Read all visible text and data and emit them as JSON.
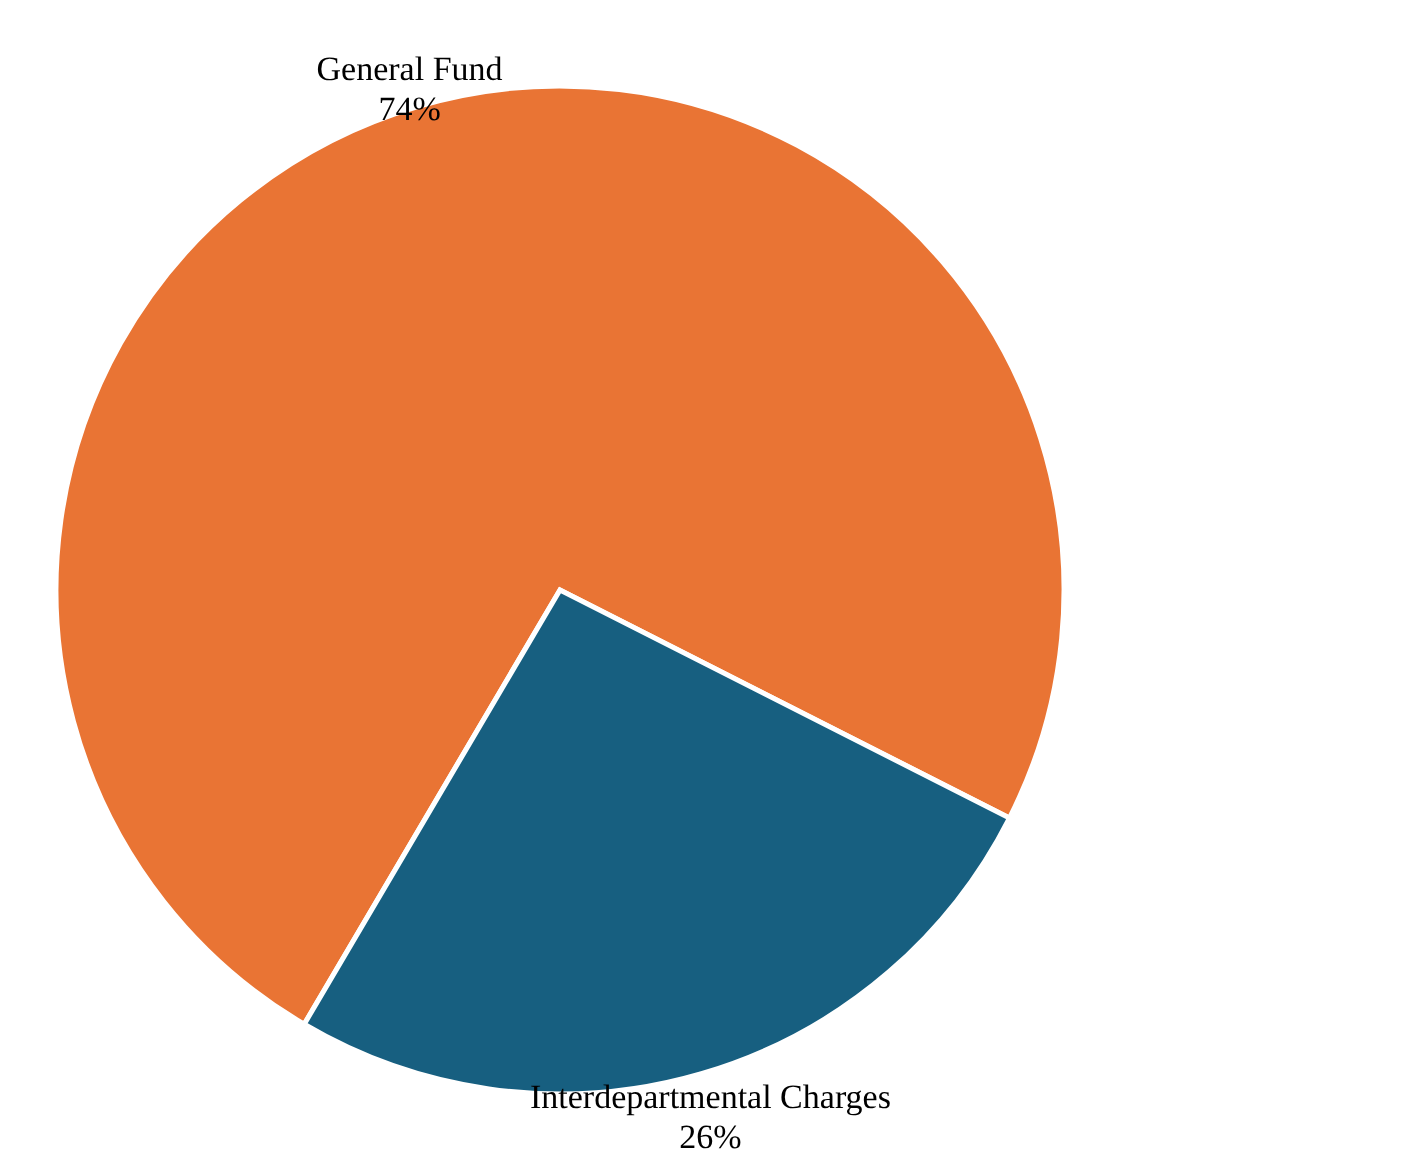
{
  "chart_data": {
    "type": "pie",
    "categories": [
      "General Fund",
      "Interdepartmental Charges"
    ],
    "values": [
      74,
      26
    ],
    "value_labels": [
      "74%",
      "26%"
    ],
    "colors": [
      "#e97434",
      "#175f80"
    ]
  }
}
